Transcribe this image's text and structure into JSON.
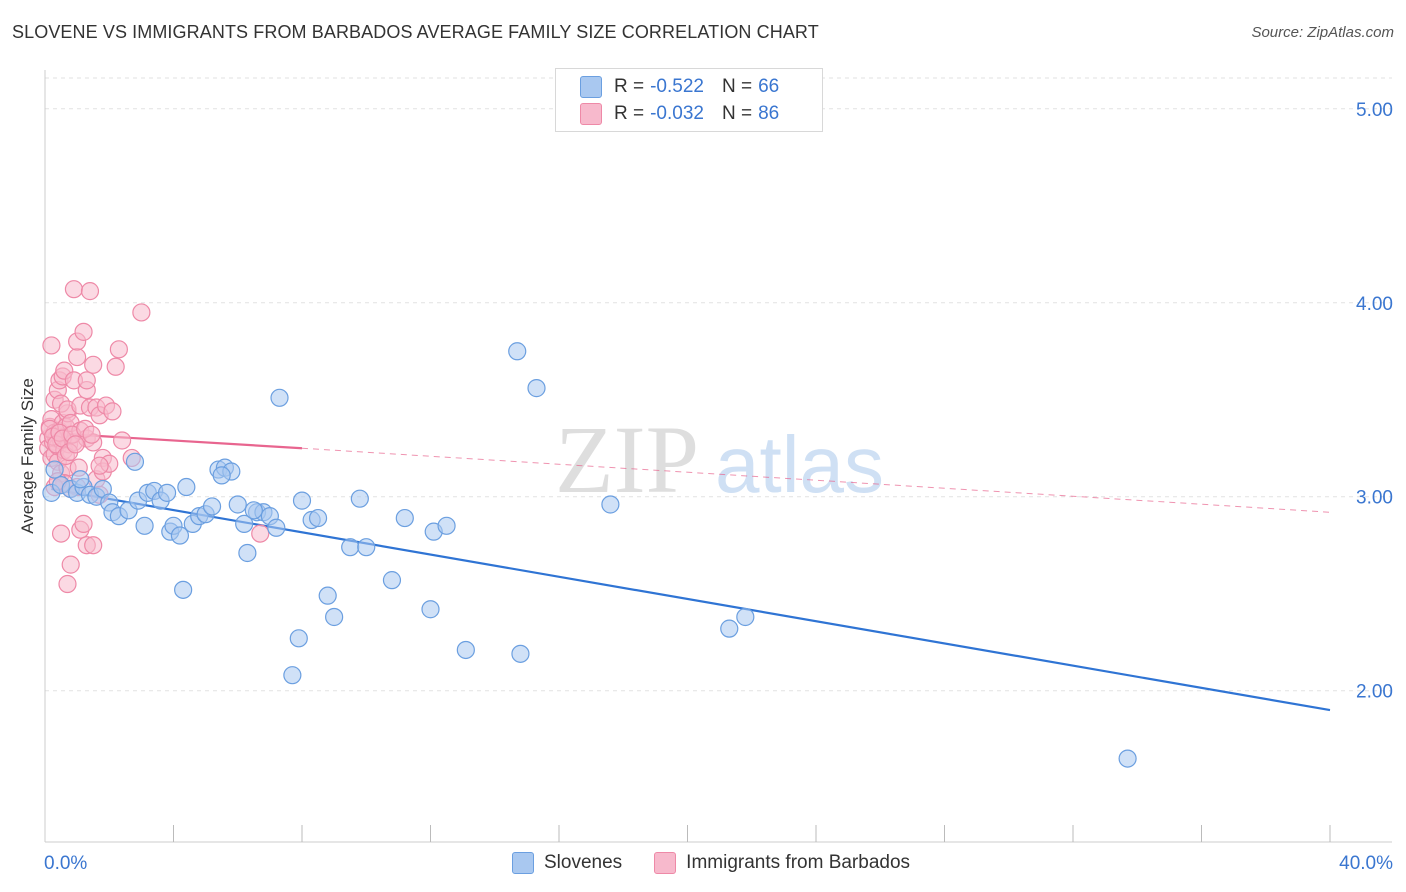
{
  "header": {
    "title": "SLOVENE VS IMMIGRANTS FROM BARBADOS AVERAGE FAMILY SIZE CORRELATION CHART",
    "source": "Source: ZipAtlas.com"
  },
  "watermark": {
    "zip": "ZIP",
    "atlas": "atlas"
  },
  "legend": {
    "rows": [
      {
        "r_label": "R =",
        "r_value": "-0.522",
        "n_label": "N =",
        "n_value": "66"
      },
      {
        "r_label": "R =",
        "r_value": "-0.032",
        "n_label": "N =",
        "n_value": "86"
      }
    ]
  },
  "bottom_legend": [
    "Slovenes",
    "Immigrants from Barbados"
  ],
  "colors": {
    "blue_fill": "#a9c8f0",
    "blue_stroke": "#6b9fe0",
    "blue_line": "#2f74d4",
    "pink_fill": "#f7b9cc",
    "pink_stroke": "#ee89a7",
    "pink_line": "#e8658f",
    "tick_label": "#3a76d0",
    "grid": "#e2e2e2"
  },
  "chart_data": {
    "type": "scatter",
    "title": "SLOVENE VS IMMIGRANTS FROM BARBADOS AVERAGE FAMILY SIZE CORRELATION CHART",
    "xlabel": "",
    "ylabel": "Average Family Size",
    "xlim": [
      0,
      40
    ],
    "ylim": [
      1.22,
      5.2
    ],
    "x_tick_labels": [
      "0.0%",
      "40.0%"
    ],
    "y_ticks": [
      2.0,
      3.0,
      4.0,
      5.0
    ],
    "y_tick_labels": [
      "2.00",
      "3.00",
      "4.00",
      "5.00"
    ],
    "grid": true,
    "legend_position": "top-center",
    "series": [
      {
        "name": "Slovenes",
        "r": -0.522,
        "n": 66,
        "trend": {
          "x": [
            0.2,
            40
          ],
          "y": [
            3.04,
            1.9
          ],
          "dashed_to": null
        },
        "points": [
          [
            0.2,
            3.02
          ],
          [
            0.5,
            3.06
          ],
          [
            0.8,
            3.04
          ],
          [
            1.0,
            3.02
          ],
          [
            1.2,
            3.05
          ],
          [
            1.4,
            3.01
          ],
          [
            1.6,
            3.0
          ],
          [
            1.8,
            3.04
          ],
          [
            2.0,
            2.97
          ],
          [
            2.1,
            2.92
          ],
          [
            2.3,
            2.9
          ],
          [
            2.6,
            2.93
          ],
          [
            2.8,
            3.18
          ],
          [
            2.9,
            2.98
          ],
          [
            3.1,
            2.85
          ],
          [
            3.2,
            3.02
          ],
          [
            3.4,
            3.03
          ],
          [
            3.6,
            2.98
          ],
          [
            3.8,
            3.02
          ],
          [
            3.9,
            2.82
          ],
          [
            4.0,
            2.85
          ],
          [
            4.2,
            2.8
          ],
          [
            4.3,
            2.52
          ],
          [
            4.4,
            3.05
          ],
          [
            4.6,
            2.86
          ],
          [
            4.8,
            2.9
          ],
          [
            5.0,
            2.91
          ],
          [
            5.2,
            2.95
          ],
          [
            5.4,
            3.14
          ],
          [
            5.6,
            3.15
          ],
          [
            5.8,
            3.13
          ],
          [
            6.0,
            2.96
          ],
          [
            6.2,
            2.86
          ],
          [
            6.3,
            2.71
          ],
          [
            6.6,
            2.92
          ],
          [
            6.8,
            2.92
          ],
          [
            7.0,
            2.9
          ],
          [
            7.2,
            2.84
          ],
          [
            7.3,
            3.51
          ],
          [
            7.7,
            2.08
          ],
          [
            7.9,
            2.27
          ],
          [
            8.0,
            2.98
          ],
          [
            8.3,
            2.88
          ],
          [
            8.5,
            2.89
          ],
          [
            8.8,
            2.49
          ],
          [
            9.0,
            2.38
          ],
          [
            9.5,
            2.74
          ],
          [
            9.8,
            2.99
          ],
          [
            10.0,
            2.74
          ],
          [
            10.8,
            2.57
          ],
          [
            11.2,
            2.89
          ],
          [
            12.0,
            2.42
          ],
          [
            12.1,
            2.82
          ],
          [
            12.5,
            2.85
          ],
          [
            13.1,
            2.21
          ],
          [
            14.7,
            3.75
          ],
          [
            14.8,
            2.19
          ],
          [
            15.3,
            3.56
          ],
          [
            17.6,
            2.96
          ],
          [
            21.3,
            2.32
          ],
          [
            21.8,
            2.38
          ],
          [
            33.7,
            1.65
          ],
          [
            0.3,
            3.14
          ],
          [
            1.1,
            3.09
          ],
          [
            5.5,
            3.11
          ],
          [
            6.5,
            2.93
          ]
        ]
      },
      {
        "name": "Immigrants from Barbados",
        "r": -0.032,
        "n": 86,
        "trend": {
          "x": [
            0.0,
            8.0
          ],
          "y": [
            3.33,
            3.25
          ],
          "dashed_to": [
            40,
            2.92
          ]
        },
        "points": [
          [
            0.1,
            3.3
          ],
          [
            0.1,
            3.25
          ],
          [
            0.15,
            3.36
          ],
          [
            0.2,
            3.2
          ],
          [
            0.2,
            3.4
          ],
          [
            0.25,
            3.28
          ],
          [
            0.3,
            3.22
          ],
          [
            0.3,
            3.33
          ],
          [
            0.35,
            3.3
          ],
          [
            0.4,
            3.18
          ],
          [
            0.4,
            3.26
          ],
          [
            0.45,
            3.34
          ],
          [
            0.5,
            3.29
          ],
          [
            0.5,
            3.12
          ],
          [
            0.55,
            3.38
          ],
          [
            0.6,
            3.31
          ],
          [
            0.6,
            3.24
          ],
          [
            0.65,
            3.36
          ],
          [
            0.7,
            3.43
          ],
          [
            0.7,
            3.15
          ],
          [
            0.75,
            3.27
          ],
          [
            0.8,
            3.32
          ],
          [
            0.2,
            3.78
          ],
          [
            0.3,
            3.5
          ],
          [
            0.4,
            3.55
          ],
          [
            0.45,
            3.6
          ],
          [
            0.5,
            3.48
          ],
          [
            0.55,
            3.62
          ],
          [
            0.6,
            3.65
          ],
          [
            0.7,
            3.45
          ],
          [
            0.8,
            3.38
          ],
          [
            0.9,
            3.28
          ],
          [
            0.9,
            3.6
          ],
          [
            1.0,
            3.72
          ],
          [
            1.0,
            3.8
          ],
          [
            1.1,
            3.47
          ],
          [
            1.2,
            3.85
          ],
          [
            1.3,
            3.55
          ],
          [
            1.3,
            3.6
          ],
          [
            1.4,
            3.46
          ],
          [
            1.5,
            3.68
          ],
          [
            1.6,
            3.46
          ],
          [
            1.7,
            3.42
          ],
          [
            1.8,
            3.2
          ],
          [
            1.9,
            3.47
          ],
          [
            2.2,
            3.67
          ],
          [
            2.3,
            3.76
          ],
          [
            2.4,
            3.29
          ],
          [
            2.7,
            3.2
          ],
          [
            3.0,
            3.95
          ],
          [
            0.9,
            4.07
          ],
          [
            1.4,
            4.06
          ],
          [
            0.5,
            2.81
          ],
          [
            0.8,
            2.65
          ],
          [
            0.7,
            2.55
          ],
          [
            1.1,
            2.83
          ],
          [
            1.3,
            2.75
          ],
          [
            1.5,
            2.75
          ],
          [
            1.0,
            3.05
          ],
          [
            1.2,
            2.86
          ],
          [
            0.6,
            3.07
          ],
          [
            0.8,
            3.04
          ],
          [
            1.6,
            3.09
          ],
          [
            1.7,
            3.01
          ],
          [
            1.8,
            3.13
          ],
          [
            2.0,
            3.17
          ],
          [
            0.3,
            3.05
          ],
          [
            0.4,
            3.08
          ],
          [
            1.1,
            3.34
          ],
          [
            1.3,
            3.3
          ],
          [
            1.5,
            3.28
          ],
          [
            0.15,
            3.35
          ],
          [
            0.25,
            3.31
          ],
          [
            0.35,
            3.27
          ],
          [
            0.45,
            3.33
          ],
          [
            0.55,
            3.3
          ],
          [
            0.65,
            3.21
          ],
          [
            0.75,
            3.23
          ],
          [
            0.85,
            3.32
          ],
          [
            0.95,
            3.27
          ],
          [
            1.05,
            3.15
          ],
          [
            1.25,
            3.35
          ],
          [
            1.45,
            3.32
          ],
          [
            1.7,
            3.16
          ],
          [
            6.7,
            2.81
          ],
          [
            2.1,
            3.44
          ]
        ]
      }
    ]
  }
}
